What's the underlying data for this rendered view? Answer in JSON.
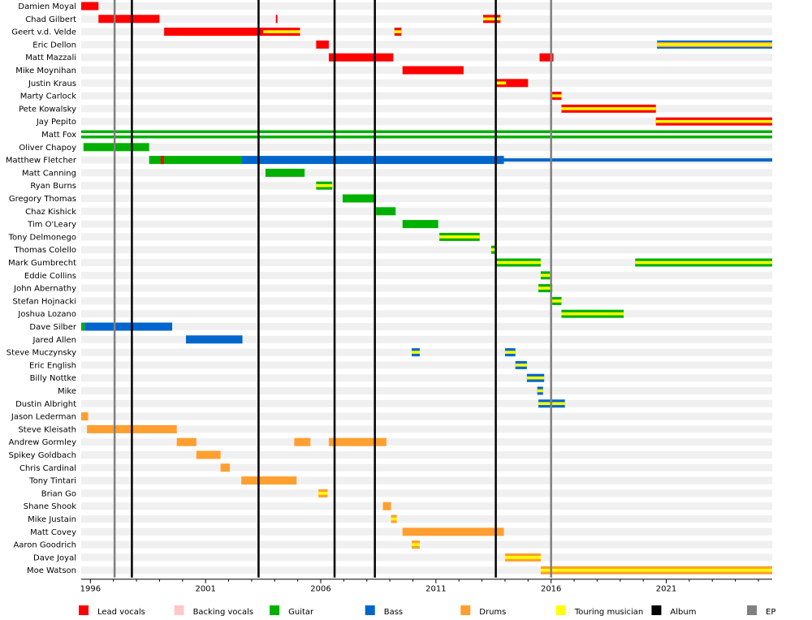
{
  "chart_data": {
    "type": "timeline",
    "title": "",
    "xlabel": "",
    "ylabel": "",
    "xlim": [
      1995.6,
      2025.6
    ],
    "x_ticks": [
      "1996",
      "2001",
      "2006",
      "2011",
      "2016",
      "2021"
    ],
    "grid": "alternating row bands",
    "legend_position": "bottom",
    "colors": {
      "lead_vocals": "#ff0000",
      "backing_vocals": "#ffc8c8",
      "guitar": "#00b000",
      "bass": "#0066cc",
      "drums": "#ff9f30",
      "touring": "#ffff00",
      "album": "#000000",
      "ep": "#808080"
    },
    "legend": [
      {
        "key": "lead_vocals",
        "label": "Lead vocals"
      },
      {
        "key": "backing_vocals",
        "label": "Backing vocals"
      },
      {
        "key": "guitar",
        "label": "Guitar"
      },
      {
        "key": "bass",
        "label": "Bass"
      },
      {
        "key": "drums",
        "label": "Drums"
      },
      {
        "key": "touring",
        "label": "Touring musician"
      },
      {
        "key": "album",
        "label": "Album"
      },
      {
        "key": "ep",
        "label": "EP"
      }
    ],
    "albums": [
      1997.8,
      2003.3,
      2006.6,
      2008.35,
      2013.6
    ],
    "eps": [
      1997.05,
      2016.0
    ],
    "members": [
      {
        "name": "Damien Moyal",
        "bars": [
          {
            "s": 1995.6,
            "e": 1996.35,
            "c": "lead_vocals"
          }
        ]
      },
      {
        "name": "Chad Gilbert",
        "bars": [
          {
            "s": 1996.35,
            "e": 1999.0,
            "c": "lead_vocals"
          },
          {
            "s": 2004.05,
            "e": 2004.12,
            "c": "lead_vocals"
          },
          {
            "s": 2013.05,
            "e": 2013.8,
            "c": "lead_vocals",
            "t": true
          }
        ]
      },
      {
        "name": "Geert v.d. Velde",
        "bars": [
          {
            "s": 1999.2,
            "e": 2003.5,
            "c": "lead_vocals"
          },
          {
            "s": 2003.5,
            "e": 2005.1,
            "c": "lead_vocals",
            "t": true
          },
          {
            "s": 2009.2,
            "e": 2009.5,
            "c": "lead_vocals",
            "t": true
          }
        ]
      },
      {
        "name": "Eric Dellon",
        "bars": [
          {
            "s": 2005.8,
            "e": 2006.35,
            "c": "lead_vocals"
          },
          {
            "s": 2020.6,
            "e": 2025.6,
            "c": "drums",
            "t": true,
            "b": "bass"
          }
        ]
      },
      {
        "name": "Matt Mazzali",
        "bars": [
          {
            "s": 2006.35,
            "e": 2009.15,
            "c": "lead_vocals"
          },
          {
            "s": 2015.5,
            "e": 2016.1,
            "c": "lead_vocals"
          }
        ]
      },
      {
        "name": "Mike Moynihan",
        "bars": [
          {
            "s": 2009.55,
            "e": 2012.2,
            "c": "lead_vocals"
          }
        ]
      },
      {
        "name": "Justin Kraus",
        "bars": [
          {
            "s": 2013.6,
            "e": 2014.05,
            "c": "lead_vocals",
            "t": true
          },
          {
            "s": 2014.05,
            "e": 2015.0,
            "c": "lead_vocals"
          }
        ]
      },
      {
        "name": "Marty Carlock",
        "bars": [
          {
            "s": 2016.05,
            "e": 2016.45,
            "c": "lead_vocals",
            "t": true
          }
        ]
      },
      {
        "name": "Pete Kowalsky",
        "bars": [
          {
            "s": 2016.45,
            "e": 2020.55,
            "c": "lead_vocals",
            "t": true
          }
        ]
      },
      {
        "name": "Jay Pepito",
        "bars": [
          {
            "s": 2020.55,
            "e": 2025.6,
            "c": "lead_vocals",
            "t": true
          }
        ]
      },
      {
        "name": "Matt Fox",
        "bars": [
          {
            "s": 1995.6,
            "e": 2025.6,
            "c": "guitar",
            "t": true,
            "b": "guitar"
          }
        ]
      },
      {
        "name": "Oliver Chapoy",
        "bars": [
          {
            "s": 1995.7,
            "e": 1998.55,
            "c": "guitar"
          }
        ]
      },
      {
        "name": "Matthew Fletcher",
        "bars": [
          {
            "s": 1998.55,
            "e": 2002.55,
            "c": "guitar"
          },
          {
            "s": 1999.05,
            "e": 1999.2,
            "c": "lead_vocals"
          },
          {
            "s": 2002.55,
            "e": 2013.95,
            "c": "bass"
          },
          {
            "s": 2013.95,
            "e": 2025.6,
            "c": "bass",
            "thin": true
          }
        ]
      },
      {
        "name": "Matt Canning",
        "bars": [
          {
            "s": 2003.6,
            "e": 2005.3,
            "c": "guitar"
          }
        ]
      },
      {
        "name": "Ryan Burns",
        "bars": [
          {
            "s": 2005.8,
            "e": 2006.5,
            "c": "guitar",
            "t": true
          }
        ]
      },
      {
        "name": "Gregory Thomas",
        "bars": [
          {
            "s": 2006.95,
            "e": 2008.4,
            "c": "guitar"
          }
        ]
      },
      {
        "name": "Chaz Kishick",
        "bars": [
          {
            "s": 2008.4,
            "e": 2009.25,
            "c": "guitar"
          }
        ]
      },
      {
        "name": "Tim O'Leary",
        "bars": [
          {
            "s": 2009.55,
            "e": 2011.1,
            "c": "guitar"
          }
        ]
      },
      {
        "name": "Tony Delmonego",
        "bars": [
          {
            "s": 2011.15,
            "e": 2012.9,
            "c": "guitar",
            "t": true
          }
        ]
      },
      {
        "name": "Thomas Colello",
        "bars": [
          {
            "s": 2013.4,
            "e": 2013.6,
            "c": "guitar",
            "t": true
          }
        ]
      },
      {
        "name": "Mark Gumbrecht",
        "bars": [
          {
            "s": 2013.6,
            "e": 2015.55,
            "c": "guitar",
            "t": true
          },
          {
            "s": 2019.65,
            "e": 2025.6,
            "c": "guitar",
            "t": true
          }
        ]
      },
      {
        "name": "Eddie Collins",
        "bars": [
          {
            "s": 2015.55,
            "e": 2015.95,
            "c": "guitar",
            "t": true
          }
        ]
      },
      {
        "name": "John Abernathy",
        "bars": [
          {
            "s": 2015.95,
            "e": 2016.05,
            "c": "guitar",
            "t": true
          },
          {
            "s": 2015.45,
            "e": 2016.05,
            "c": "guitar",
            "t": true
          }
        ]
      },
      {
        "name": "Stefan Hojnacki",
        "bars": [
          {
            "s": 2016.05,
            "e": 2016.45,
            "c": "guitar",
            "t": true
          }
        ]
      },
      {
        "name": "Joshua Lozano",
        "bars": [
          {
            "s": 2016.45,
            "e": 2019.15,
            "c": "guitar",
            "t": true
          }
        ]
      },
      {
        "name": "Dave Silber",
        "bars": [
          {
            "s": 1995.6,
            "e": 1995.75,
            "c": "guitar"
          },
          {
            "s": 1995.75,
            "e": 1999.55,
            "c": "bass"
          }
        ]
      },
      {
        "name": "Jared Allen",
        "bars": [
          {
            "s": 2000.15,
            "e": 2002.6,
            "c": "bass"
          }
        ]
      },
      {
        "name": "Steve Muczynsky",
        "bars": [
          {
            "s": 2009.95,
            "e": 2010.3,
            "c": "bass",
            "t": true
          },
          {
            "s": 2014.0,
            "e": 2014.45,
            "c": "bass",
            "t": true
          }
        ]
      },
      {
        "name": "Eric English",
        "bars": [
          {
            "s": 2014.45,
            "e": 2014.95,
            "c": "bass",
            "t": true
          }
        ]
      },
      {
        "name": "Billy Nottke",
        "bars": [
          {
            "s": 2014.95,
            "e": 2015.7,
            "c": "bass",
            "t": true
          }
        ]
      },
      {
        "name": "Mike",
        "bars": [
          {
            "s": 2015.4,
            "e": 2015.65,
            "c": "bass",
            "t": true
          }
        ]
      },
      {
        "name": "Dustin Albright",
        "bars": [
          {
            "s": 2015.45,
            "e": 2016.6,
            "c": "bass",
            "t": true
          }
        ]
      },
      {
        "name": "Jason Lederman",
        "bars": [
          {
            "s": 1995.6,
            "e": 1995.9,
            "c": "drums"
          }
        ]
      },
      {
        "name": "Steve Kleisath",
        "bars": [
          {
            "s": 1995.85,
            "e": 1999.75,
            "c": "drums"
          }
        ]
      },
      {
        "name": "Andrew Gormley",
        "bars": [
          {
            "s": 1999.75,
            "e": 2000.6,
            "c": "drums"
          },
          {
            "s": 2004.85,
            "e": 2005.55,
            "c": "drums"
          },
          {
            "s": 2006.35,
            "e": 2008.85,
            "c": "drums"
          }
        ]
      },
      {
        "name": "Spikey Goldbach",
        "bars": [
          {
            "s": 2000.6,
            "e": 2001.65,
            "c": "drums"
          }
        ]
      },
      {
        "name": "Chris Cardinal",
        "bars": [
          {
            "s": 2001.65,
            "e": 2002.05,
            "c": "drums"
          }
        ]
      },
      {
        "name": "Tony Tintari",
        "bars": [
          {
            "s": 2002.55,
            "e": 2004.95,
            "c": "drums"
          }
        ]
      },
      {
        "name": "Brian Go",
        "bars": [
          {
            "s": 2005.9,
            "e": 2006.3,
            "c": "drums",
            "t": true
          }
        ]
      },
      {
        "name": "Shane Shook",
        "bars": [
          {
            "s": 2008.7,
            "e": 2009.05,
            "c": "drums"
          }
        ]
      },
      {
        "name": "Mike Justain",
        "bars": [
          {
            "s": 2009.05,
            "e": 2009.3,
            "c": "drums",
            "t": true
          }
        ]
      },
      {
        "name": "Matt Covey",
        "bars": [
          {
            "s": 2009.55,
            "e": 2013.95,
            "c": "drums"
          }
        ]
      },
      {
        "name": "Aaron Goodrich",
        "bars": [
          {
            "s": 2009.95,
            "e": 2010.3,
            "c": "drums",
            "t": true
          }
        ]
      },
      {
        "name": "Dave Joyal",
        "bars": [
          {
            "s": 2014.0,
            "e": 2015.55,
            "c": "drums",
            "t": true
          }
        ]
      },
      {
        "name": "Moe Watson",
        "bars": [
          {
            "s": 2015.55,
            "e": 2025.6,
            "c": "drums",
            "t": true
          }
        ]
      }
    ]
  }
}
